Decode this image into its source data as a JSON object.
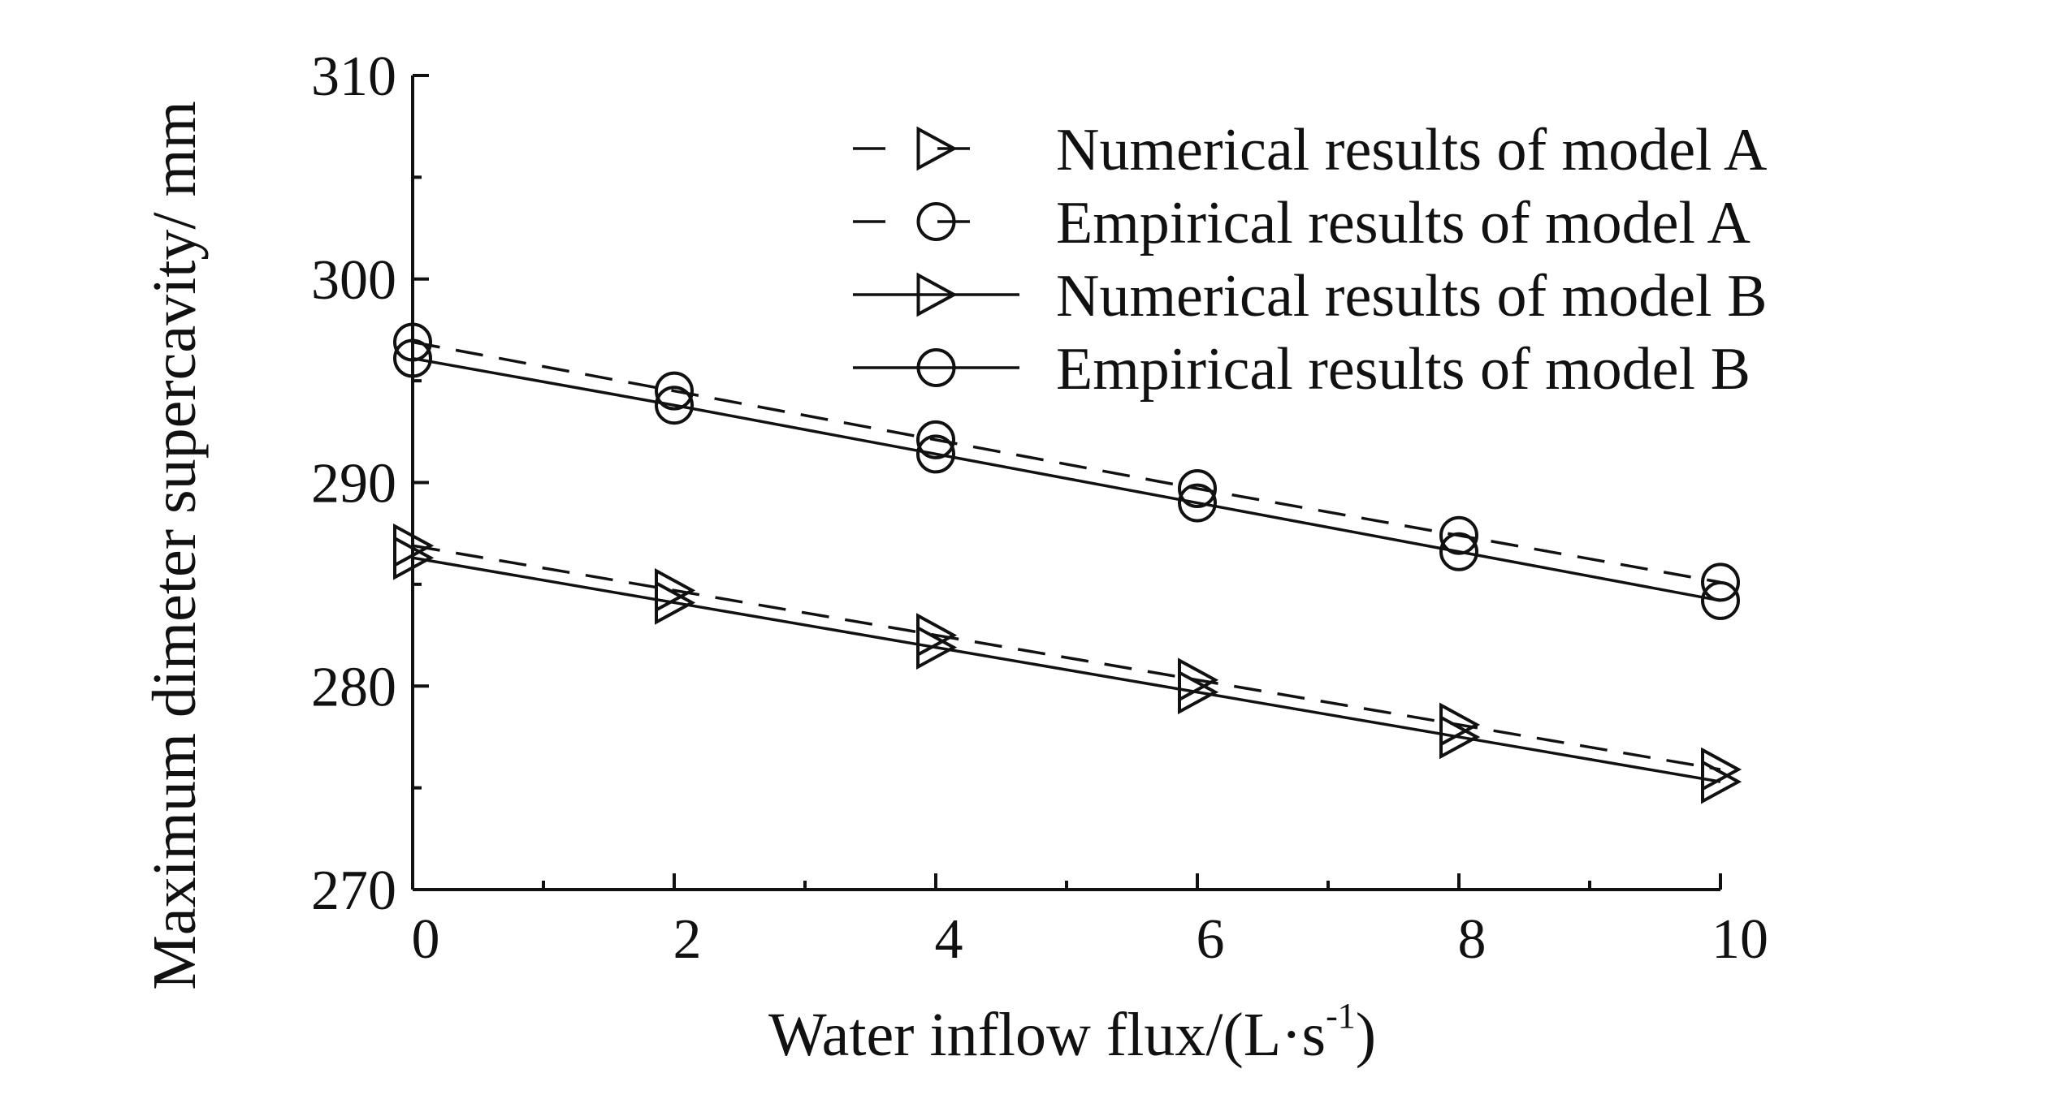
{
  "chart_data": {
    "type": "line",
    "title": "",
    "xlabel": "Water inflow flux/(L·s",
    "xlabel_sup": "-1",
    "xlabel_tail": ")",
    "ylabel": "Maximum dimeter supercavity/ mm",
    "xlim": [
      0,
      10
    ],
    "ylim": [
      270,
      310
    ],
    "x_ticks": [
      "0",
      "2",
      "4",
      "6",
      "8",
      "10"
    ],
    "y_ticks": [
      "270",
      "280",
      "290",
      "300",
      "310"
    ],
    "grid": false,
    "legend_position": "top-right",
    "x": [
      0,
      2,
      4,
      6,
      8,
      10
    ],
    "series": [
      {
        "name": "Numerical results of model A",
        "line_style": "dashed",
        "marker": "triangle-right",
        "values": [
          286.9,
          284.7,
          282.5,
          280.3,
          278.1,
          275.9
        ]
      },
      {
        "name": "Empirical results of model A",
        "line_style": "dashed",
        "marker": "circle",
        "values": [
          296.9,
          294.5,
          292.1,
          289.7,
          287.4,
          285.1
        ]
      },
      {
        "name": "Numerical results of model B",
        "line_style": "solid",
        "marker": "triangle-right",
        "values": [
          286.3,
          284.1,
          281.9,
          279.7,
          277.5,
          275.3
        ]
      },
      {
        "name": "Empirical results of model B",
        "line_style": "solid",
        "marker": "circle",
        "values": [
          296.1,
          293.8,
          291.4,
          289.0,
          286.6,
          284.2
        ]
      }
    ]
  }
}
